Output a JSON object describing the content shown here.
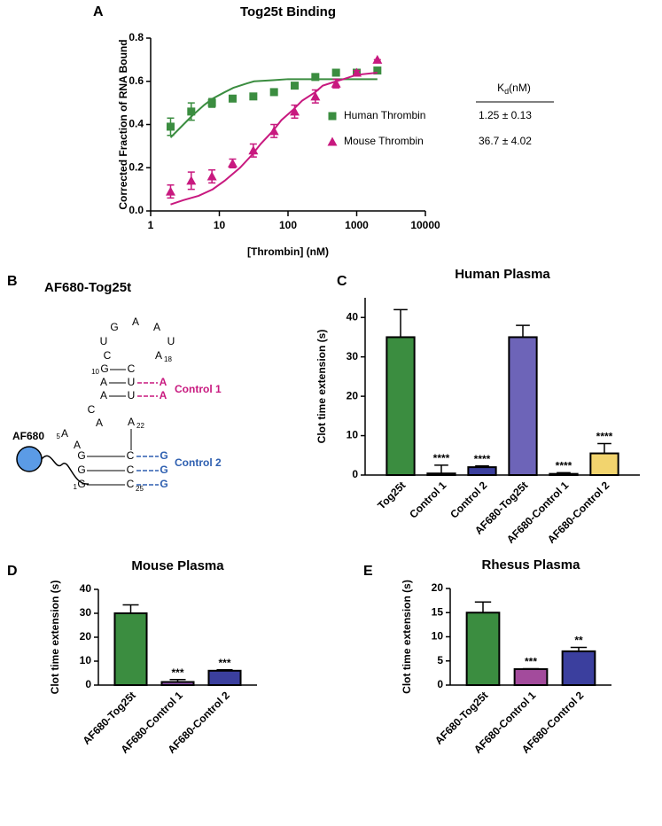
{
  "chart_data": [
    {
      "type": "scatter",
      "panel": "A",
      "title": "Tog25t Binding",
      "xlabel": "[Thrombin] (nM)",
      "ylabel": "Corrected Fraction of RNA Bound",
      "xscale": "log",
      "xlim": [
        1,
        10000
      ],
      "xticks": [
        1,
        10,
        100,
        1000,
        10000
      ],
      "ylim": [
        0,
        0.8
      ],
      "yticks": [
        {
          "value": 0,
          "label": "0.0"
        },
        0.2,
        0.4,
        0.6,
        0.8
      ],
      "kd_header": {
        "symbol": "K",
        "subscript": "d",
        "unit": "(nM)"
      },
      "series": [
        {
          "name": "Human Thrombin",
          "marker": "square",
          "color": "#3b8d40",
          "kd": "1.25 ± 0.13",
          "x": [
            1.95,
            3.9,
            7.8,
            15.6,
            31.25,
            62.5,
            125,
            250,
            500,
            1000,
            2000
          ],
          "values": [
            0.39,
            0.46,
            0.5,
            0.52,
            0.53,
            0.55,
            0.58,
            0.62,
            0.64,
            0.64,
            0.65
          ],
          "errors": [
            0.04,
            0.04,
            0.02,
            0.01,
            0.01,
            0.01,
            0.01,
            0.01,
            0.01,
            0.01,
            0.01
          ],
          "fit_x": [
            1.95,
            3,
            4,
            6,
            8,
            12,
            16,
            25,
            32,
            60,
            100,
            300,
            2000
          ],
          "fit_values": [
            0.34,
            0.4,
            0.44,
            0.49,
            0.52,
            0.55,
            0.57,
            0.59,
            0.6,
            0.605,
            0.61,
            0.61,
            0.61
          ]
        },
        {
          "name": "Mouse Thrombin",
          "marker": "triangle",
          "color": "#c8197f",
          "kd": "36.7 ± 4.02",
          "x": [
            1.95,
            3.9,
            7.8,
            15.6,
            31.25,
            62.5,
            125,
            250,
            500,
            1000,
            2000
          ],
          "values": [
            0.09,
            0.14,
            0.16,
            0.22,
            0.28,
            0.37,
            0.46,
            0.53,
            0.59,
            0.64,
            0.7
          ],
          "errors": [
            0.03,
            0.04,
            0.03,
            0.02,
            0.03,
            0.03,
            0.03,
            0.03,
            0.02,
            0.01,
            0.0
          ],
          "fit_x": [
            1.95,
            3,
            5,
            8,
            12,
            20,
            30,
            40,
            60,
            80,
            120,
            160,
            250,
            320,
            500,
            640,
            1000,
            2000
          ],
          "fit_values": [
            0.03,
            0.05,
            0.07,
            0.1,
            0.14,
            0.2,
            0.26,
            0.31,
            0.37,
            0.42,
            0.47,
            0.51,
            0.55,
            0.58,
            0.6,
            0.61,
            0.63,
            0.64
          ]
        }
      ]
    },
    {
      "type": "bar",
      "panel": "C",
      "title": "Human Plasma",
      "ylabel": "Clot time extension (s)",
      "categories": [
        "Tog25t",
        "Control 1",
        "Control 2",
        "AF680-Tog25t",
        "AF680-Control 1",
        "AF680-Control 2"
      ],
      "values": [
        35,
        0.4,
        2,
        35,
        0.3,
        5.5
      ],
      "errors": [
        7,
        2.1,
        0.3,
        3,
        0.3,
        2.5
      ],
      "colors": [
        "#3b8d40",
        "#3b3f9e",
        "#3b3f9e",
        "#6d64b8",
        "#8a4fa8",
        "#f2d46e"
      ],
      "significance": [
        null,
        "****",
        "****",
        null,
        "****",
        "****"
      ],
      "ylim": [
        0,
        45
      ],
      "yticks": [
        0,
        10,
        20,
        30,
        40
      ]
    },
    {
      "type": "bar",
      "panel": "D",
      "title": "Mouse Plasma",
      "ylabel": "Clot time extension (s)",
      "categories": [
        "AF680-Tog25t",
        "AF680-Control 1",
        "AF680-Control 2"
      ],
      "values": [
        30,
        1.3,
        6
      ],
      "errors": [
        3.5,
        1,
        0.4
      ],
      "colors": [
        "#3b8d40",
        "#8a4fa8",
        "#3b3f9e"
      ],
      "significance": [
        null,
        "***",
        "***"
      ],
      "ylim": [
        0,
        40
      ],
      "yticks": [
        0,
        10,
        20,
        30,
        40
      ]
    },
    {
      "type": "bar",
      "panel": "E",
      "title": "Rhesus Plasma",
      "ylabel": "Clot time extension (s)",
      "categories": [
        "AF680-Tog25t",
        "AF680-Control 1",
        "AF680-Control 2"
      ],
      "values": [
        15,
        3.3,
        7
      ],
      "errors": [
        2.2,
        0.1,
        0.8
      ],
      "colors": [
        "#3b8d40",
        "#a34b9c",
        "#3b3f9e"
      ],
      "significance": [
        null,
        "***",
        "**"
      ],
      "ylim": [
        0,
        20
      ],
      "yticks": [
        0,
        5,
        10,
        15,
        20
      ]
    }
  ],
  "structure": {
    "panel": "B",
    "title": "AF680-Tog25t",
    "dye": "AF680",
    "letters": [
      "G",
      "A",
      "A",
      "U",
      "U",
      "C",
      "A",
      "G",
      "C",
      "A",
      "U",
      "A",
      "U",
      "C",
      "A",
      "A",
      "A",
      "A",
      "G",
      "C",
      "G",
      "C",
      "G",
      "C"
    ],
    "positions": [
      "10",
      "18",
      "22",
      "5",
      "1",
      "25"
    ],
    "controls": [
      {
        "name": "Control 1",
        "letters": [
          "A",
          "A"
        ]
      },
      {
        "name": "Control 2",
        "letters": [
          "G",
          "G",
          "G"
        ]
      }
    ]
  }
}
